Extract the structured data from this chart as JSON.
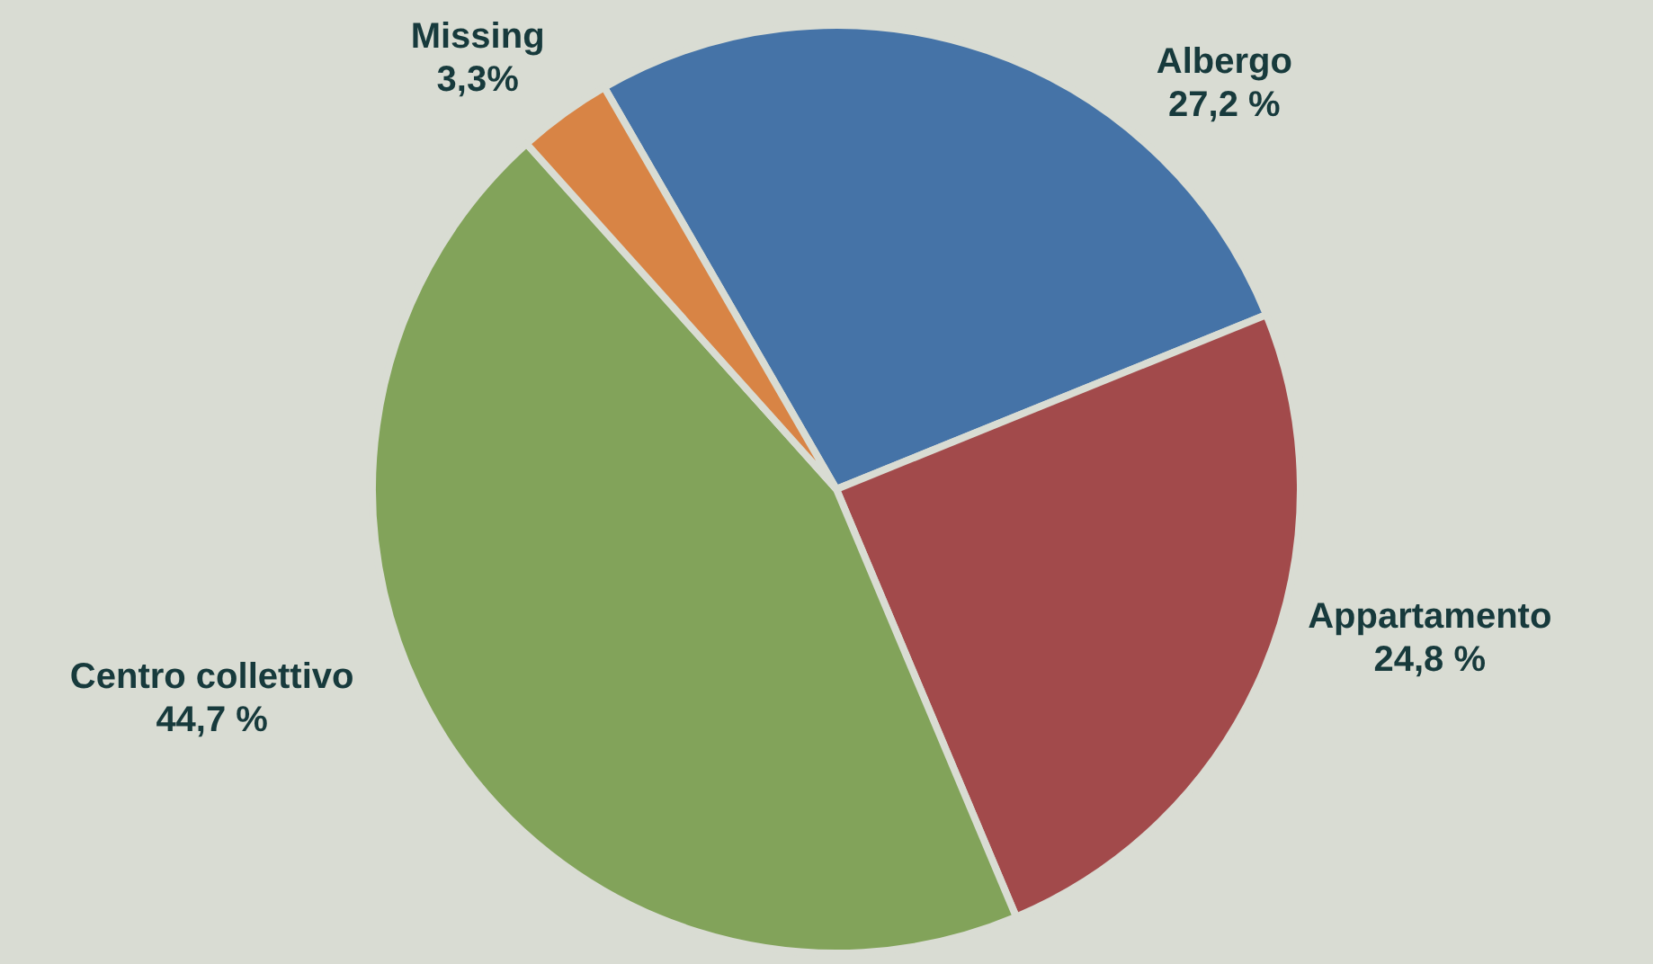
{
  "chart_data": {
    "type": "pie",
    "categories": [
      "Albergo",
      "Appartamento",
      "Centro collettivo",
      "Missing"
    ],
    "values": [
      27.2,
      24.8,
      44.7,
      3.3
    ],
    "colors": [
      "#4573a7",
      "#a24a4b",
      "#82a35a",
      "#d88445"
    ],
    "value_labels": [
      "27,2 %",
      "24,8 %",
      "44,7 %",
      "3,3%"
    ]
  }
}
